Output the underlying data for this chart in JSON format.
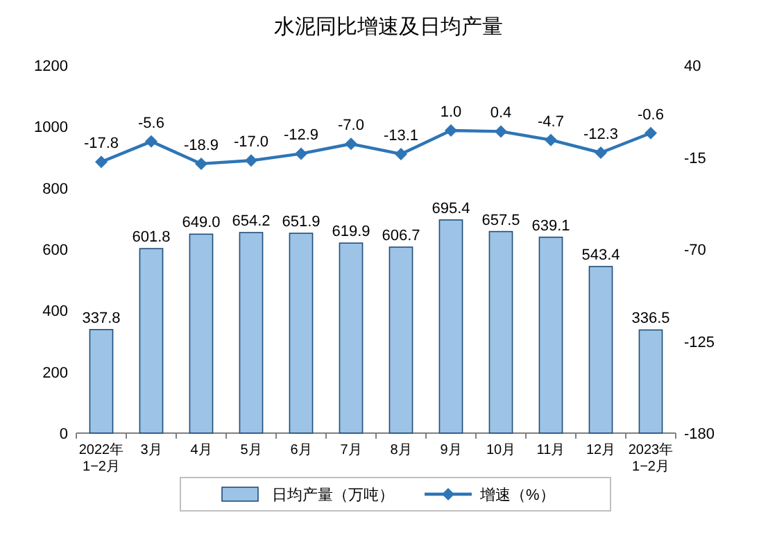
{
  "chart_data": {
    "type": "bar",
    "title": "水泥同比增速及日均产量",
    "categories": [
      "2022年\n1−2月",
      "3月",
      "4月",
      "5月",
      "6月",
      "7月",
      "8月",
      "9月",
      "10月",
      "11月",
      "12月",
      "2023年\n1−2月"
    ],
    "series": [
      {
        "name": "日均产量（万吨）",
        "color": "#9dc3e6",
        "values": [
          337.8,
          601.8,
          649.0,
          654.2,
          651.9,
          619.9,
          606.7,
          695.4,
          657.5,
          639.1,
          543.4,
          336.5
        ],
        "value_labels": [
          "337.8",
          "601.8",
          "649.0",
          "654.2",
          "651.9",
          "619.9",
          "606.7",
          "695.4",
          "657.5",
          "639.1",
          "543.4",
          "336.5"
        ]
      },
      {
        "name": "增速（%）",
        "type": "line",
        "axis": "y2",
        "color": "#2e75b6",
        "marker": "diamond",
        "values": [
          -17.8,
          -5.6,
          -18.9,
          -17.0,
          -12.9,
          -7.0,
          -13.1,
          1.0,
          0.4,
          -4.7,
          -12.3,
          -0.6
        ],
        "value_labels": [
          "-17.8",
          "-5.6",
          "-18.9",
          "-17.0",
          "-12.9",
          "-7.0",
          "-13.1",
          "1.0",
          "0.4",
          "-4.7",
          "-12.3",
          "-0.6"
        ]
      }
    ],
    "ylim": [
      0,
      1200
    ],
    "yticks": [
      0,
      200,
      400,
      600,
      800,
      1000,
      1200
    ],
    "y2lim": [
      -180,
      40
    ],
    "y2ticks": [
      -180,
      -125,
      -70,
      -15,
      40
    ],
    "legend": "bottom",
    "grid": false
  }
}
